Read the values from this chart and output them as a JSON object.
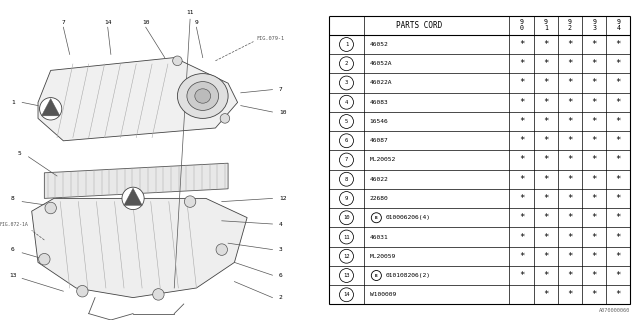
{
  "figure_code": "A070000060",
  "background_color": "#ffffff",
  "rows": [
    {
      "num": "1",
      "bold_circle": false,
      "part": "46052",
      "marks": [
        true,
        true,
        true,
        true,
        true
      ]
    },
    {
      "num": "2",
      "bold_circle": false,
      "part": "46052A",
      "marks": [
        true,
        true,
        true,
        true,
        true
      ]
    },
    {
      "num": "3",
      "bold_circle": false,
      "part": "46022A",
      "marks": [
        true,
        true,
        true,
        true,
        true
      ]
    },
    {
      "num": "4",
      "bold_circle": false,
      "part": "46083",
      "marks": [
        true,
        true,
        true,
        true,
        true
      ]
    },
    {
      "num": "5",
      "bold_circle": false,
      "part": "16546",
      "marks": [
        true,
        true,
        true,
        true,
        true
      ]
    },
    {
      "num": "6",
      "bold_circle": false,
      "part": "46087",
      "marks": [
        true,
        true,
        true,
        true,
        true
      ]
    },
    {
      "num": "7",
      "bold_circle": false,
      "part": "ML20052",
      "marks": [
        true,
        true,
        true,
        true,
        true
      ]
    },
    {
      "num": "8",
      "bold_circle": false,
      "part": "46022",
      "marks": [
        true,
        true,
        true,
        true,
        true
      ]
    },
    {
      "num": "9",
      "bold_circle": false,
      "part": "22680",
      "marks": [
        true,
        true,
        true,
        true,
        true
      ]
    },
    {
      "num": "10",
      "bold_circle": true,
      "part": "010006206(4)",
      "marks": [
        true,
        true,
        true,
        true,
        true
      ]
    },
    {
      "num": "11",
      "bold_circle": false,
      "part": "46031",
      "marks": [
        true,
        true,
        true,
        true,
        true
      ]
    },
    {
      "num": "12",
      "bold_circle": false,
      "part": "ML20059",
      "marks": [
        true,
        true,
        true,
        true,
        true
      ]
    },
    {
      "num": "13",
      "bold_circle": true,
      "part": "010108206(2)",
      "marks": [
        true,
        true,
        true,
        true,
        true
      ]
    },
    {
      "num": "14",
      "bold_circle": false,
      "part": "W100009",
      "marks": [
        false,
        true,
        true,
        true,
        true
      ]
    }
  ]
}
